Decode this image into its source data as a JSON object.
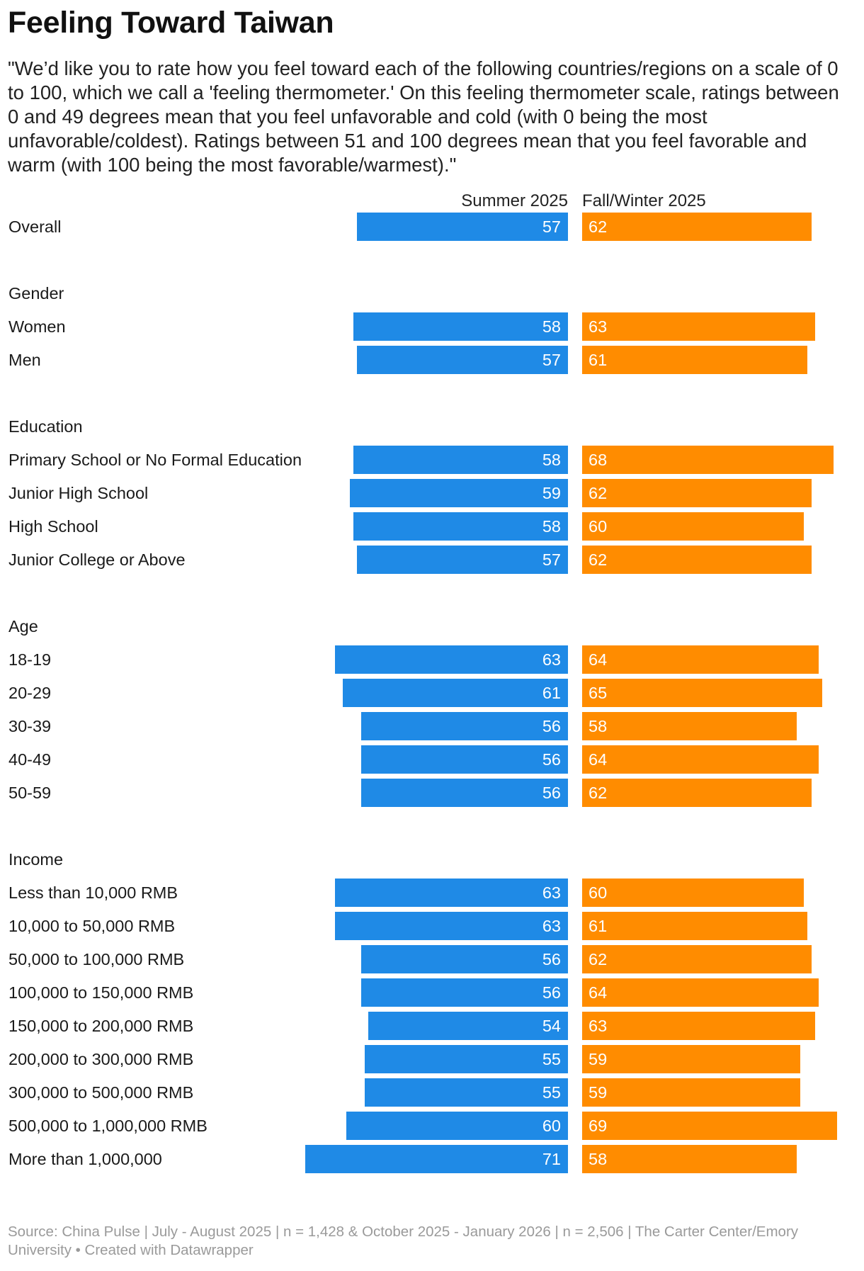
{
  "title": "Feeling Toward Taiwan",
  "subtitle": "\"We’d like you to rate how you feel toward each of the following countries/regions on a scale of 0 to 100, which we call a 'feeling thermometer.' On this feeling thermometer scale, ratings between 0 and 49 degrees mean that you feel unfavorable and cold (with 0 being the most unfavorable/coldest). Ratings between 51 and 100 degrees mean that you feel favorable and warm (with 100 being the most favorable/warmest).\"",
  "footer": "Source: China Pulse | July - August 2025 | n = 1,428 & October 2025 - January 2026 | n = 2,506 | The Carter Center/Emory University • Created with Datawrapper",
  "colors": {
    "summer": "#1f8ae6",
    "fall": "#ff8c00"
  },
  "chart_data": {
    "type": "bar",
    "orientation": "horizontal",
    "layout": "back-to-back",
    "series": [
      {
        "name": "Summer 2025",
        "color": "#1f8ae6",
        "direction": "left"
      },
      {
        "name": "Fall/Winter 2025",
        "color": "#ff8c00",
        "direction": "right"
      }
    ],
    "rows": [
      {
        "kind": "item",
        "label": "Overall",
        "values": [
          57,
          62
        ]
      },
      {
        "kind": "spacer"
      },
      {
        "kind": "group",
        "label": "Gender"
      },
      {
        "kind": "item",
        "label": "Women",
        "values": [
          58,
          63
        ]
      },
      {
        "kind": "item",
        "label": "Men",
        "values": [
          57,
          61
        ]
      },
      {
        "kind": "spacer"
      },
      {
        "kind": "group",
        "label": "Education"
      },
      {
        "kind": "item",
        "label": "Primary School or No Formal Education",
        "values": [
          58,
          68
        ]
      },
      {
        "kind": "item",
        "label": "Junior High School",
        "values": [
          59,
          62
        ]
      },
      {
        "kind": "item",
        "label": "High School",
        "values": [
          58,
          60
        ]
      },
      {
        "kind": "item",
        "label": "Junior College or Above",
        "values": [
          57,
          62
        ]
      },
      {
        "kind": "spacer"
      },
      {
        "kind": "group",
        "label": "Age"
      },
      {
        "kind": "item",
        "label": "18-19",
        "values": [
          63,
          64
        ]
      },
      {
        "kind": "item",
        "label": "20-29",
        "values": [
          61,
          65
        ]
      },
      {
        "kind": "item",
        "label": "30-39",
        "values": [
          56,
          58
        ]
      },
      {
        "kind": "item",
        "label": "40-49",
        "values": [
          56,
          64
        ]
      },
      {
        "kind": "item",
        "label": "50-59",
        "values": [
          56,
          62
        ]
      },
      {
        "kind": "spacer"
      },
      {
        "kind": "group",
        "label": "Income"
      },
      {
        "kind": "item",
        "label": "Less than 10,000 RMB",
        "values": [
          63,
          60
        ]
      },
      {
        "kind": "item",
        "label": "10,000 to 50,000 RMB",
        "values": [
          63,
          61
        ]
      },
      {
        "kind": "item",
        "label": "50,000 to 100,000 RMB",
        "values": [
          56,
          62
        ]
      },
      {
        "kind": "item",
        "label": "100,000 to 150,000 RMB",
        "values": [
          56,
          64
        ]
      },
      {
        "kind": "item",
        "label": "150,000 to 200,000 RMB",
        "values": [
          54,
          63
        ]
      },
      {
        "kind": "item",
        "label": "200,000 to 300,000 RMB",
        "values": [
          55,
          59
        ]
      },
      {
        "kind": "item",
        "label": "300,000 to 500,000 RMB",
        "values": [
          55,
          59
        ]
      },
      {
        "kind": "item",
        "label": "500,000 to 1,000,000 RMB",
        "values": [
          60,
          69
        ]
      },
      {
        "kind": "item",
        "label": "More than 1,000,000",
        "values": [
          71,
          58
        ]
      }
    ]
  }
}
